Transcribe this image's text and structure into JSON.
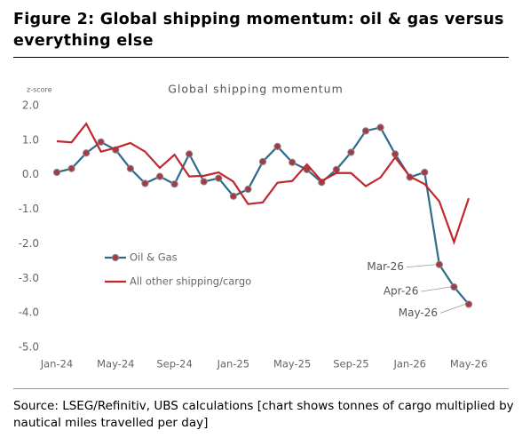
{
  "figure_title": "Figure 2: Global shipping momentum: oil & gas versus everything else",
  "source": "Source: LSEG/Refinitiv, UBS calculations [chart shows tonnes of cargo multiplied by nautical miles travelled per day]",
  "chart_data": {
    "type": "line",
    "title": "Global shipping momentum",
    "y_label": "z-score",
    "categories": [
      "Jan-24",
      null,
      null,
      null,
      "May-24",
      null,
      null,
      null,
      "Sep-24",
      null,
      null,
      null,
      "Jan-25",
      null,
      null,
      null,
      "May-25",
      null,
      null,
      null,
      "Sep-25",
      null,
      null,
      null,
      "Jan-26",
      null,
      null,
      null,
      "May-26"
    ],
    "series": [
      {
        "name": "Oil & Gas",
        "color": "#2e6a8c",
        "marker_color": "#a33a46",
        "markers": true,
        "values": [
          0.07,
          0.18,
          0.63,
          0.95,
          0.72,
          0.18,
          -0.25,
          -0.05,
          -0.27,
          0.6,
          -0.2,
          -0.1,
          -0.62,
          -0.42,
          0.38,
          0.82,
          0.36,
          0.15,
          -0.22,
          0.15,
          0.65,
          1.27,
          1.37,
          0.6,
          -0.07,
          0.07,
          -2.6,
          -3.25,
          -3.75
        ]
      },
      {
        "name": "All other shipping/cargo",
        "color": "#c0282d",
        "markers": false,
        "values": [
          0.97,
          0.94,
          1.48,
          0.67,
          0.78,
          0.92,
          0.67,
          0.2,
          0.58,
          -0.05,
          -0.03,
          0.07,
          -0.2,
          -0.85,
          -0.8,
          -0.23,
          -0.18,
          0.3,
          -0.18,
          0.05,
          0.05,
          -0.33,
          -0.08,
          0.5,
          -0.05,
          -0.27,
          -0.77,
          -1.95,
          -0.68
        ]
      }
    ],
    "annotations": [
      "Mar-26",
      "Apr-26",
      "May-26"
    ],
    "ylim": [
      -5,
      2
    ],
    "yticks": [
      {
        "value": 2,
        "label": "2.0"
      },
      {
        "value": 1,
        "label": "1.0"
      },
      {
        "value": 0,
        "label": "0.0"
      },
      {
        "value": -1,
        "label": "-1.0"
      },
      {
        "value": -2,
        "label": "-2.0"
      },
      {
        "value": -3,
        "label": "-3.0"
      },
      {
        "value": -4,
        "label": "-4.0"
      },
      {
        "value": -5,
        "label": "-5.0"
      }
    ],
    "grid": false,
    "legend": "center-left"
  }
}
